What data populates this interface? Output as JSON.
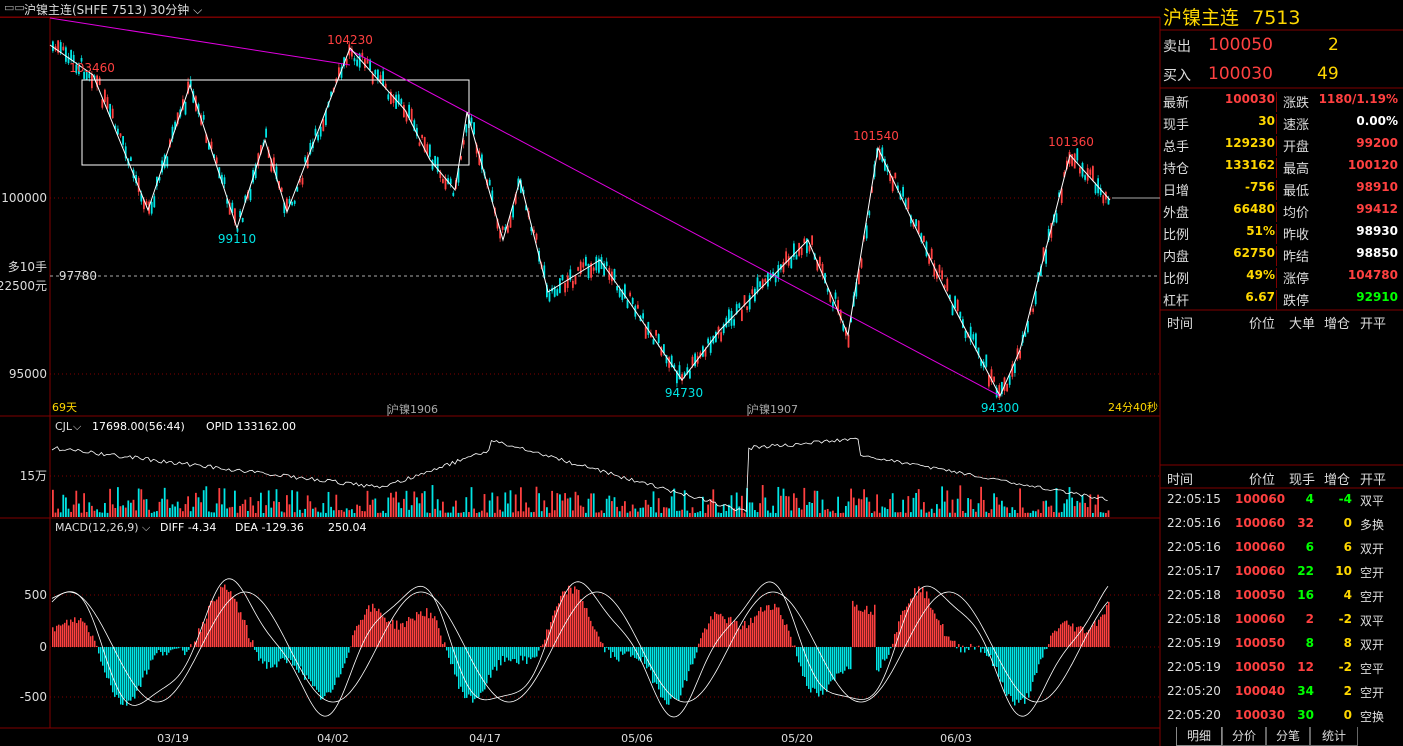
{
  "topbar": {
    "instrument": "沪镍主连(SHFE 7513)",
    "period": "30分钟"
  },
  "price_chart": {
    "days_label": "69天",
    "contract_label_1": "沪镍1906",
    "contract_label_2": "沪镍1907",
    "countdown": "24分40秒",
    "position_label_1": "多10手",
    "position_label_2": "22500元",
    "dashed_price": "97780",
    "y_tick_1": "100000",
    "y_tick_2": "95000",
    "peak_labels": [
      "103460",
      "104230",
      "101540",
      "101360"
    ],
    "trough_labels": [
      "99110",
      "94730",
      "94300"
    ]
  },
  "volume_panel": {
    "indicator": "CJL",
    "value": "17698.00(56:44)",
    "opid": "OPID 133162.00",
    "y_tick": "15万"
  },
  "macd_panel": {
    "indicator": "MACD(12,26,9)",
    "diff": "DIFF -4.34",
    "dea": "DEA -129.36",
    "macd": "250.04",
    "y_tick_pos": "500",
    "y_tick_zero": "0",
    "y_tick_neg": "-500"
  },
  "x_axis": [
    "03/19",
    "04/02",
    "04/17",
    "05/06",
    "05/20",
    "06/03"
  ],
  "quote": {
    "title": "沪镍主连",
    "code": "7513",
    "sell_label": "卖出",
    "sell_price": "100050",
    "sell_qty": "2",
    "buy_label": "买入",
    "buy_price": "100030",
    "buy_qty": "49",
    "rows": [
      {
        "k": "最新",
        "v1": "100030",
        "c1": "#ff4040",
        "k2": "涨跌",
        "v2": "1180/1.19%",
        "c2": "#ff4040"
      },
      {
        "k": "现手",
        "v1": "30",
        "c1": "#ffd700",
        "k2": "速涨",
        "v2": "0.00%",
        "c2": "#ffffff"
      },
      {
        "k": "总手",
        "v1": "129230",
        "c1": "#ffd700",
        "k2": "开盘",
        "v2": "99200",
        "c2": "#ff4040"
      },
      {
        "k": "持仓",
        "v1": "133162",
        "c1": "#ffd700",
        "k2": "最高",
        "v2": "100120",
        "c2": "#ff4040"
      },
      {
        "k": "日增",
        "v1": "-756",
        "c1": "#ffd700",
        "k2": "最低",
        "v2": "98910",
        "c2": "#ff4040"
      },
      {
        "k": "外盘",
        "v1": "66480",
        "c1": "#ffd700",
        "k2": "均价",
        "v2": "99412",
        "c2": "#ff4040"
      },
      {
        "k": "比例",
        "v1": "51%",
        "c1": "#ffd700",
        "k2": "昨收",
        "v2": "98930",
        "c2": "#ffffff"
      },
      {
        "k": "内盘",
        "v1": "62750",
        "c1": "#ffd700",
        "k2": "昨结",
        "v2": "98850",
        "c2": "#ffffff"
      },
      {
        "k": "比例",
        "v1": "49%",
        "c1": "#ffd700",
        "k2": "涨停",
        "v2": "104780",
        "c2": "#ff4040"
      },
      {
        "k": "杠杆",
        "v1": "6.67",
        "c1": "#ffd700",
        "k2": "跌停",
        "v2": "92910",
        "c2": "#00ff00"
      }
    ],
    "bigorder_header": [
      "时间",
      "价位",
      "大单",
      "增仓",
      "开平"
    ],
    "ticks_header": [
      "时间",
      "价位",
      "现手",
      "增仓",
      "开平"
    ],
    "ticks": [
      {
        "t": "22:05:15",
        "p": "100060",
        "q": "4",
        "qc": "#00ff00",
        "d": "-4",
        "dc": "#00ff00",
        "o": "双平"
      },
      {
        "t": "22:05:16",
        "p": "100060",
        "q": "32",
        "qc": "#ff4040",
        "d": "0",
        "dc": "#ffd700",
        "o": "多换"
      },
      {
        "t": "22:05:16",
        "p": "100060",
        "q": "6",
        "qc": "#00ff00",
        "d": "6",
        "dc": "#ffd700",
        "o": "双开"
      },
      {
        "t": "22:05:17",
        "p": "100060",
        "q": "22",
        "qc": "#00ff00",
        "d": "10",
        "dc": "#ffd700",
        "o": "空开"
      },
      {
        "t": "22:05:18",
        "p": "100050",
        "q": "16",
        "qc": "#00ff00",
        "d": "4",
        "dc": "#ffd700",
        "o": "空开"
      },
      {
        "t": "22:05:18",
        "p": "100060",
        "q": "2",
        "qc": "#ff4040",
        "d": "-2",
        "dc": "#ffd700",
        "o": "双平"
      },
      {
        "t": "22:05:19",
        "p": "100050",
        "q": "8",
        "qc": "#00ff00",
        "d": "8",
        "dc": "#ffd700",
        "o": "双开"
      },
      {
        "t": "22:05:19",
        "p": "100050",
        "q": "12",
        "qc": "#ff4040",
        "d": "-2",
        "dc": "#ffd700",
        "o": "空平"
      },
      {
        "t": "22:05:20",
        "p": "100040",
        "q": "34",
        "qc": "#00ff00",
        "d": "2",
        "dc": "#ffd700",
        "o": "空开"
      },
      {
        "t": "22:05:20",
        "p": "100030",
        "q": "30",
        "qc": "#00ff00",
        "d": "0",
        "dc": "#ffd700",
        "o": "空换"
      }
    ]
  },
  "tabs": [
    "明细",
    "分价",
    "分笔",
    "统计"
  ],
  "colors": {
    "up": "#ff4040",
    "down": "#00e5e5",
    "grid": "#800000",
    "accent": "#ffd700"
  }
}
